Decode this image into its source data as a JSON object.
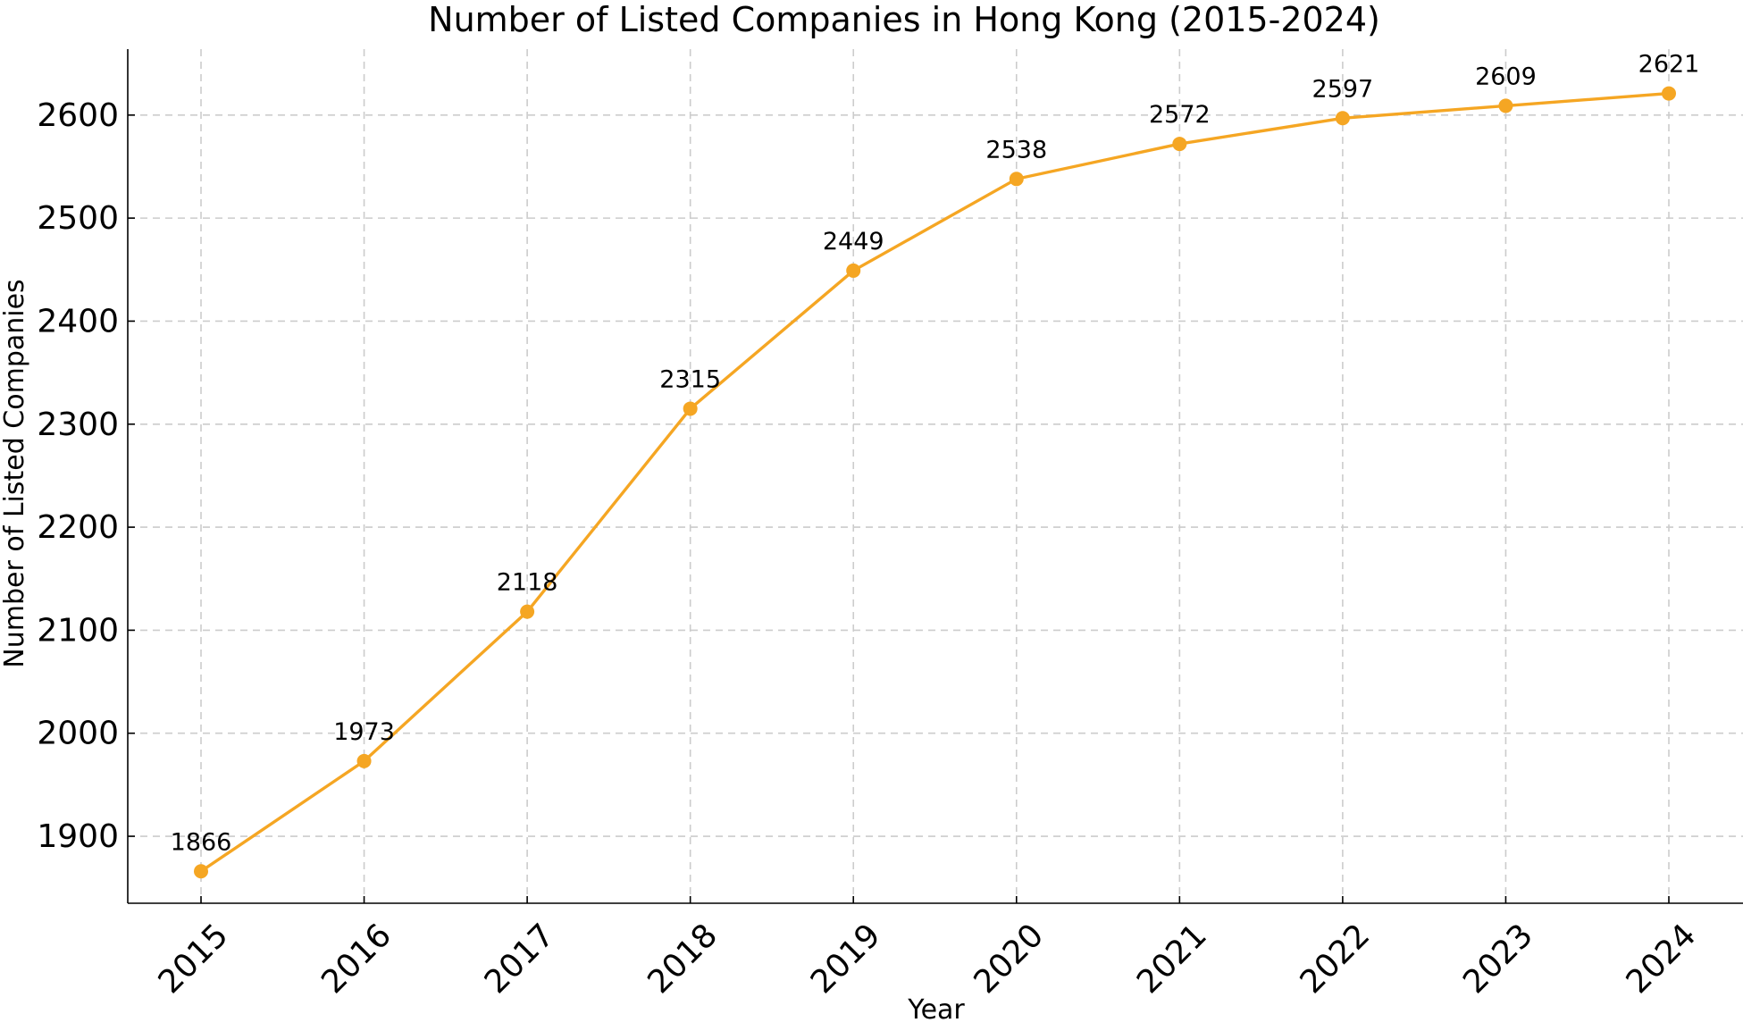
{
  "chart_data": {
    "type": "line",
    "title": "Number of Listed Companies in Hong Kong (2015-2024)",
    "xlabel": "Year",
    "ylabel": "Number of Listed Companies",
    "x": [
      2015,
      2016,
      2017,
      2018,
      2019,
      2020,
      2021,
      2022,
      2023,
      2024
    ],
    "x_tick_labels": [
      "2015",
      "2016",
      "2017",
      "2018",
      "2019",
      "2020",
      "2021",
      "2022",
      "2023",
      "2024"
    ],
    "series": [
      {
        "values": [
          1866,
          1973,
          2118,
          2315,
          2449,
          2538,
          2572,
          2597,
          2609,
          2621
        ],
        "color": "#F5A623",
        "marker": "circle"
      }
    ],
    "data_labels": [
      "1866",
      "1973",
      "2118",
      "2315",
      "2449",
      "2538",
      "2572",
      "2597",
      "2609",
      "2621"
    ],
    "y_ticks": [
      1900,
      2000,
      2100,
      2200,
      2300,
      2400,
      2500,
      2600
    ],
    "y_tick_labels": [
      "1900",
      "2000",
      "2100",
      "2200",
      "2300",
      "2400",
      "2500",
      "2600"
    ],
    "ylim": [
      1835,
      2664
    ],
    "grid": true,
    "grid_style": "dashed",
    "legend": false,
    "colors": {
      "line": "#F5A623",
      "grid": "#cccccc",
      "axis": "#000000",
      "text": "#000000"
    }
  }
}
